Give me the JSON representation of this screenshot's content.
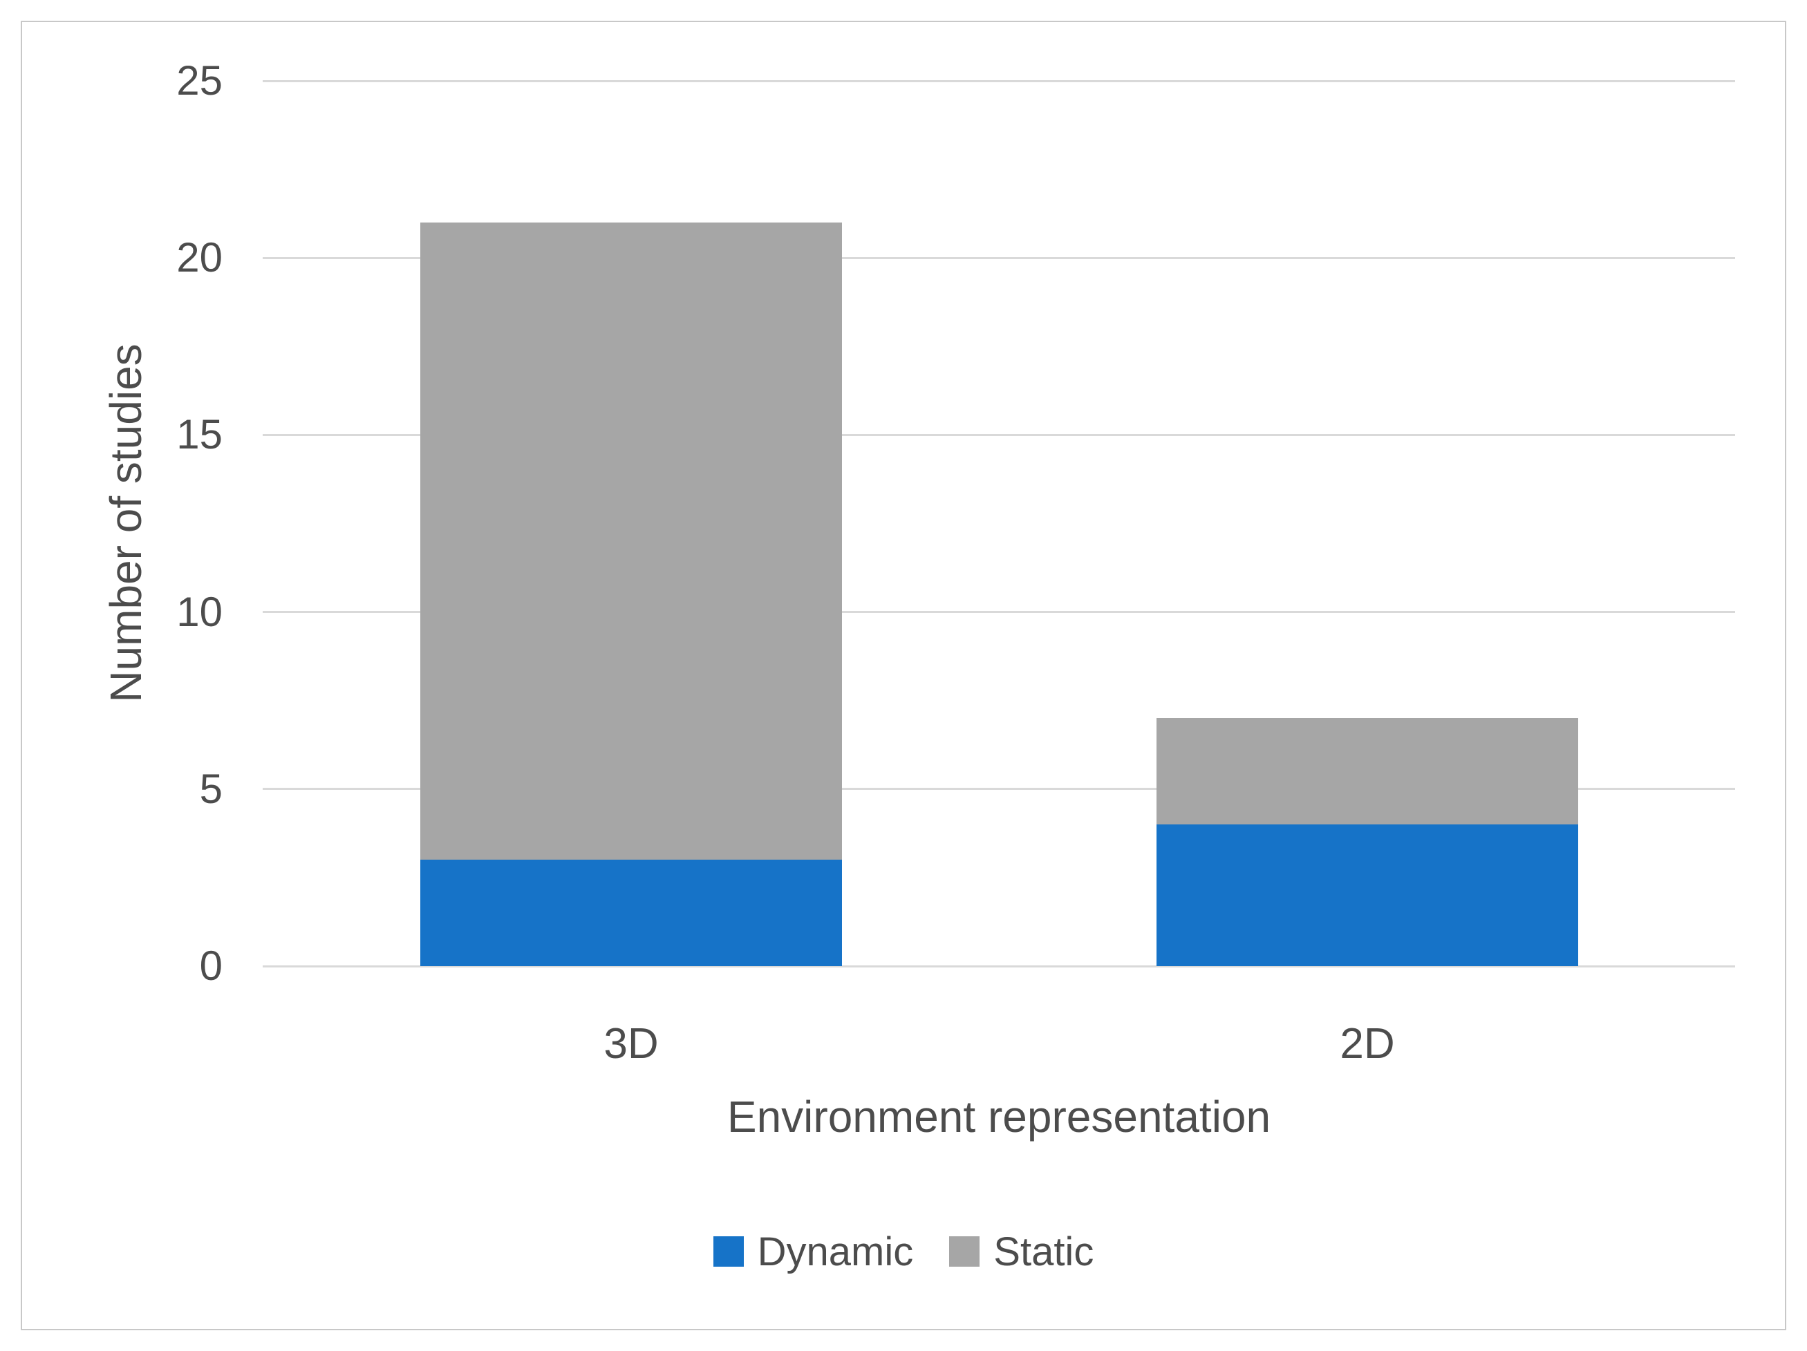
{
  "chart_data": {
    "type": "bar",
    "stacked": true,
    "categories": [
      "3D",
      "2D"
    ],
    "series": [
      {
        "name": "Dynamic",
        "color": "#1673C8",
        "values": [
          3,
          4
        ]
      },
      {
        "name": "Static",
        "color": "#A6A6A6",
        "values": [
          18,
          3
        ]
      }
    ],
    "totals": [
      21,
      7
    ],
    "title": "",
    "xlabel": "Environment representation",
    "ylabel": "Number of studies",
    "ylim": [
      0,
      25
    ],
    "ytick_step": 5,
    "yticks": [
      0,
      5,
      10,
      15,
      20,
      25
    ],
    "grid": true,
    "gridline_color": "#D9D9D9",
    "text_color": "#4C4C4C",
    "frame_border_color": "#C8C8C8",
    "legend_position": "bottom",
    "legend_labels": [
      "Dynamic",
      "Static"
    ]
  }
}
